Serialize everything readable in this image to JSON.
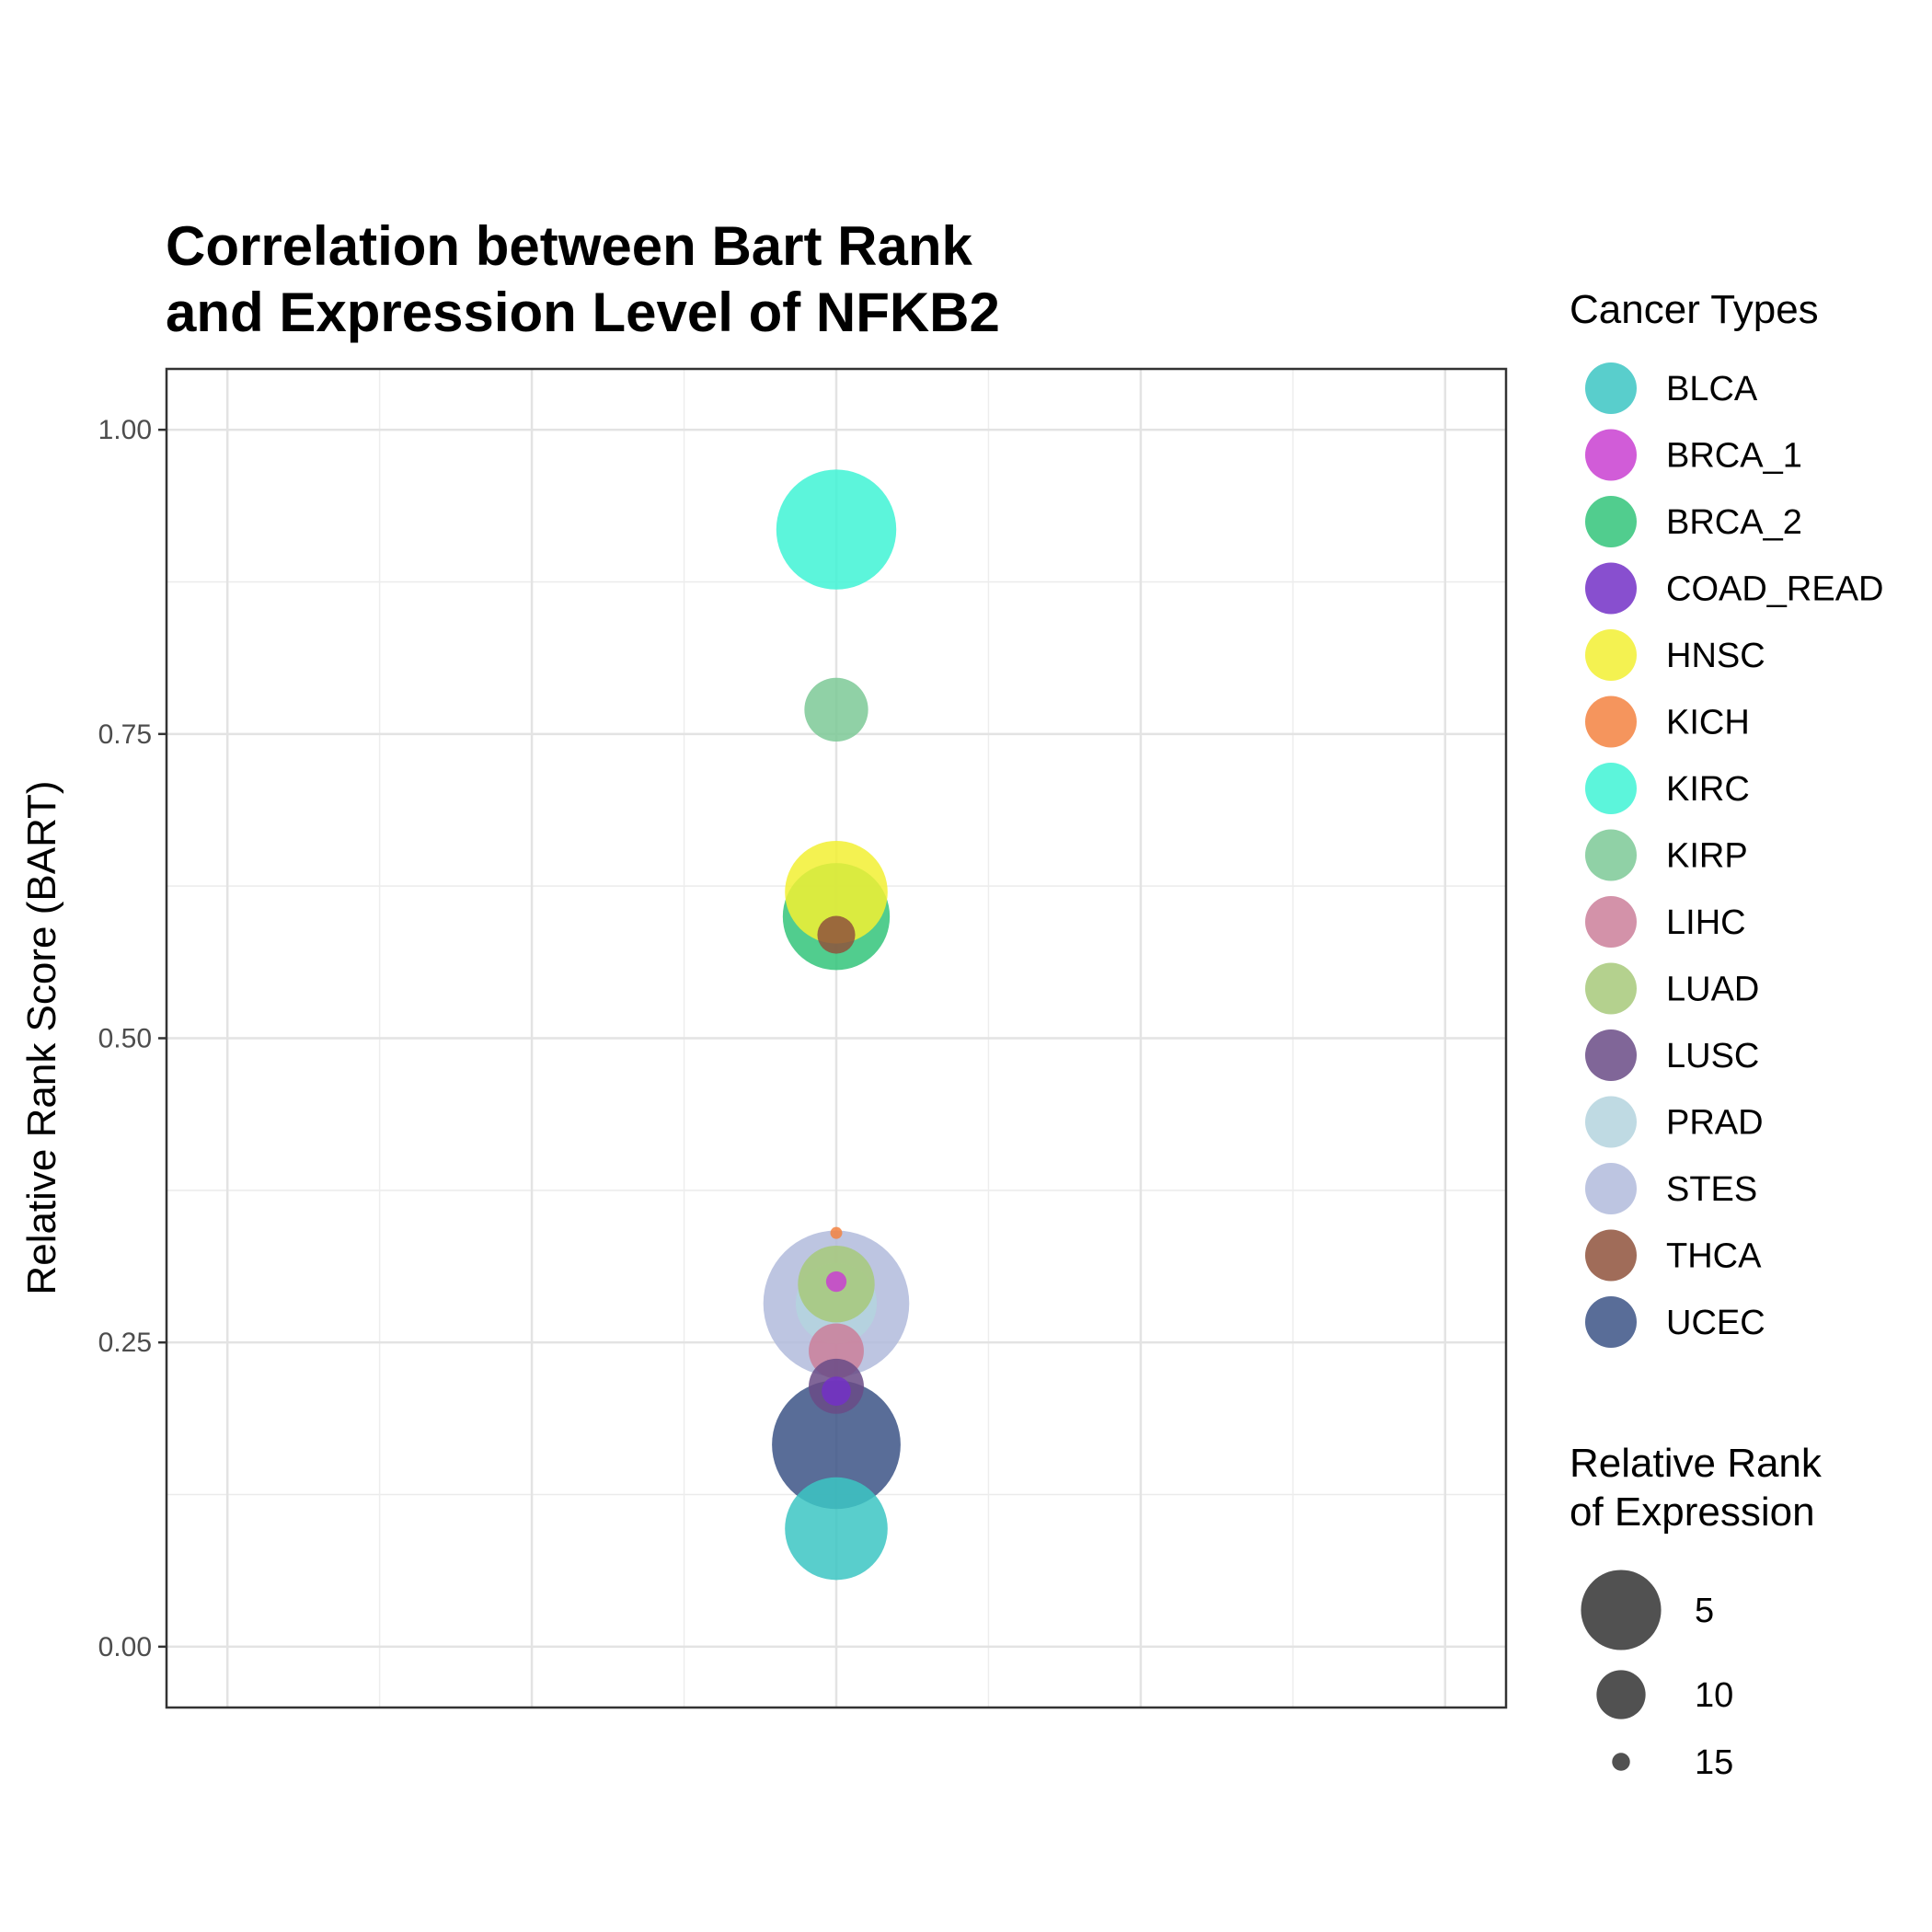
{
  "chart_data": {
    "type": "scatter",
    "title_lines": [
      "Correlation between Bart Rank",
      "and Expression Level of NFKB2"
    ],
    "xlabel": "",
    "ylabel": "Relative Rank Score (BART)",
    "ylim": [
      -0.05,
      1.05
    ],
    "yticks": [
      "0.00",
      "0.25",
      "0.50",
      "0.75",
      "1.00"
    ],
    "ytick_values": [
      0,
      0.25,
      0.5,
      0.75,
      1.0
    ],
    "xlim": [
      -0.55,
      0.55
    ],
    "grid": true,
    "legend_position": "right",
    "color_legend": {
      "title": "Cancer Types",
      "items": [
        {
          "name": "BLCA",
          "color": "#3cc6c3"
        },
        {
          "name": "BRCA_1",
          "color": "#c93fd1"
        },
        {
          "name": "BRCA_2",
          "color": "#33c47a"
        },
        {
          "name": "COAD_READ",
          "color": "#7330c7"
        },
        {
          "name": "HNSC",
          "color": "#f2f032"
        },
        {
          "name": "KICH",
          "color": "#f38241"
        },
        {
          "name": "KIRC",
          "color": "#3ff3d5"
        },
        {
          "name": "KIRP",
          "color": "#7dc996"
        },
        {
          "name": "LIHC",
          "color": "#cb7f9a"
        },
        {
          "name": "LUAD",
          "color": "#a7c97a"
        },
        {
          "name": "LUSC",
          "color": "#6a4b86"
        },
        {
          "name": "PRAD",
          "color": "#b4d4de"
        },
        {
          "name": "STES",
          "color": "#b1bbdc"
        },
        {
          "name": "THCA",
          "color": "#8f523c"
        },
        {
          "name": "UCEC",
          "color": "#3c5486"
        }
      ]
    },
    "size_legend": {
      "title_lines": [
        "Relative Rank",
        "of Expression"
      ],
      "items": [
        {
          "label": "5",
          "value": 5
        },
        {
          "label": "10",
          "value": 10
        },
        {
          "label": "15",
          "value": 15
        }
      ]
    },
    "points": [
      {
        "series": "STES",
        "x": 0,
        "y": 0.282,
        "size": 1
      },
      {
        "series": "UCEC",
        "x": 0,
        "y": 0.166,
        "size": 3
      },
      {
        "series": "KIRC",
        "x": 0,
        "y": 0.918,
        "size": 4
      },
      {
        "series": "BRCA_2",
        "x": 0,
        "y": 0.6,
        "size": 5.5
      },
      {
        "series": "HNSC",
        "x": 0,
        "y": 0.62,
        "size": 6
      },
      {
        "series": "BLCA",
        "x": 0,
        "y": 0.097,
        "size": 6
      },
      {
        "series": "PRAD",
        "x": 0,
        "y": 0.282,
        "size": 8.5
      },
      {
        "series": "LUAD",
        "x": 0,
        "y": 0.298,
        "size": 9
      },
      {
        "series": "KIRP",
        "x": 0,
        "y": 0.77,
        "size": 10.5
      },
      {
        "series": "LIHC",
        "x": 0,
        "y": 0.243,
        "size": 11.5
      },
      {
        "series": "LUSC",
        "x": 0,
        "y": 0.214,
        "size": 11.5
      },
      {
        "series": "THCA",
        "x": 0,
        "y": 0.585,
        "size": 13.5
      },
      {
        "series": "COAD_READ",
        "x": 0,
        "y": 0.21,
        "size": 14.5
      },
      {
        "series": "BRCA_1",
        "x": 0,
        "y": 0.3,
        "size": 15.5
      },
      {
        "series": "KICH",
        "x": 0,
        "y": 0.34,
        "size": 16.5
      }
    ]
  }
}
